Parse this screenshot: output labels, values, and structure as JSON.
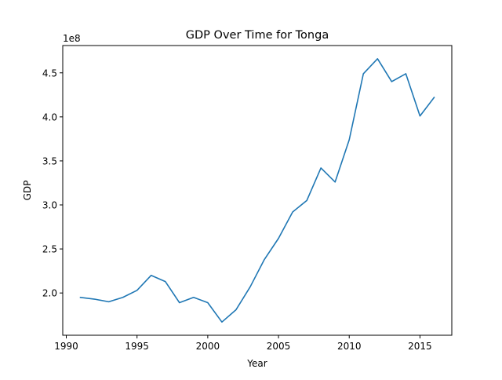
{
  "chart_data": {
    "type": "line",
    "title": "GDP Over Time for Tonga",
    "xlabel": "Year",
    "ylabel": "GDP",
    "y_offset_label": "1e8",
    "xlim": [
      1989.75,
      2017.25
    ],
    "ylim": [
      152000000.0,
      481000000.0
    ],
    "x_ticks": [
      1990,
      1995,
      2000,
      2005,
      2010,
      2015
    ],
    "x_tick_labels": [
      "1990",
      "1995",
      "2000",
      "2005",
      "2010",
      "2015"
    ],
    "y_ticks": [
      200000000.0,
      250000000.0,
      300000000.0,
      350000000.0,
      400000000.0,
      450000000.0
    ],
    "y_tick_labels": [
      "2.0",
      "2.5",
      "3.0",
      "3.5",
      "4.0",
      "4.5"
    ],
    "grid": false,
    "legend": "none",
    "line_color": "#1f77b4",
    "x": [
      1991,
      1992,
      1993,
      1994,
      1995,
      1996,
      1997,
      1998,
      1999,
      2000,
      2001,
      2002,
      2003,
      2004,
      2005,
      2006,
      2007,
      2008,
      2009,
      2010,
      2011,
      2012,
      2013,
      2014,
      2015,
      2016
    ],
    "values": [
      195000000.0,
      193000000.0,
      190000000.0,
      195000000.0,
      203000000.0,
      220000000.0,
      213000000.0,
      189000000.0,
      195000000.0,
      189000000.0,
      167000000.0,
      181000000.0,
      207000000.0,
      238000000.0,
      262000000.0,
      292000000.0,
      305000000.0,
      342000000.0,
      326000000.0,
      374000000.0,
      449000000.0,
      466000000.0,
      440000000.0,
      449000000.0,
      401000000.0,
      422000000.0
    ]
  }
}
